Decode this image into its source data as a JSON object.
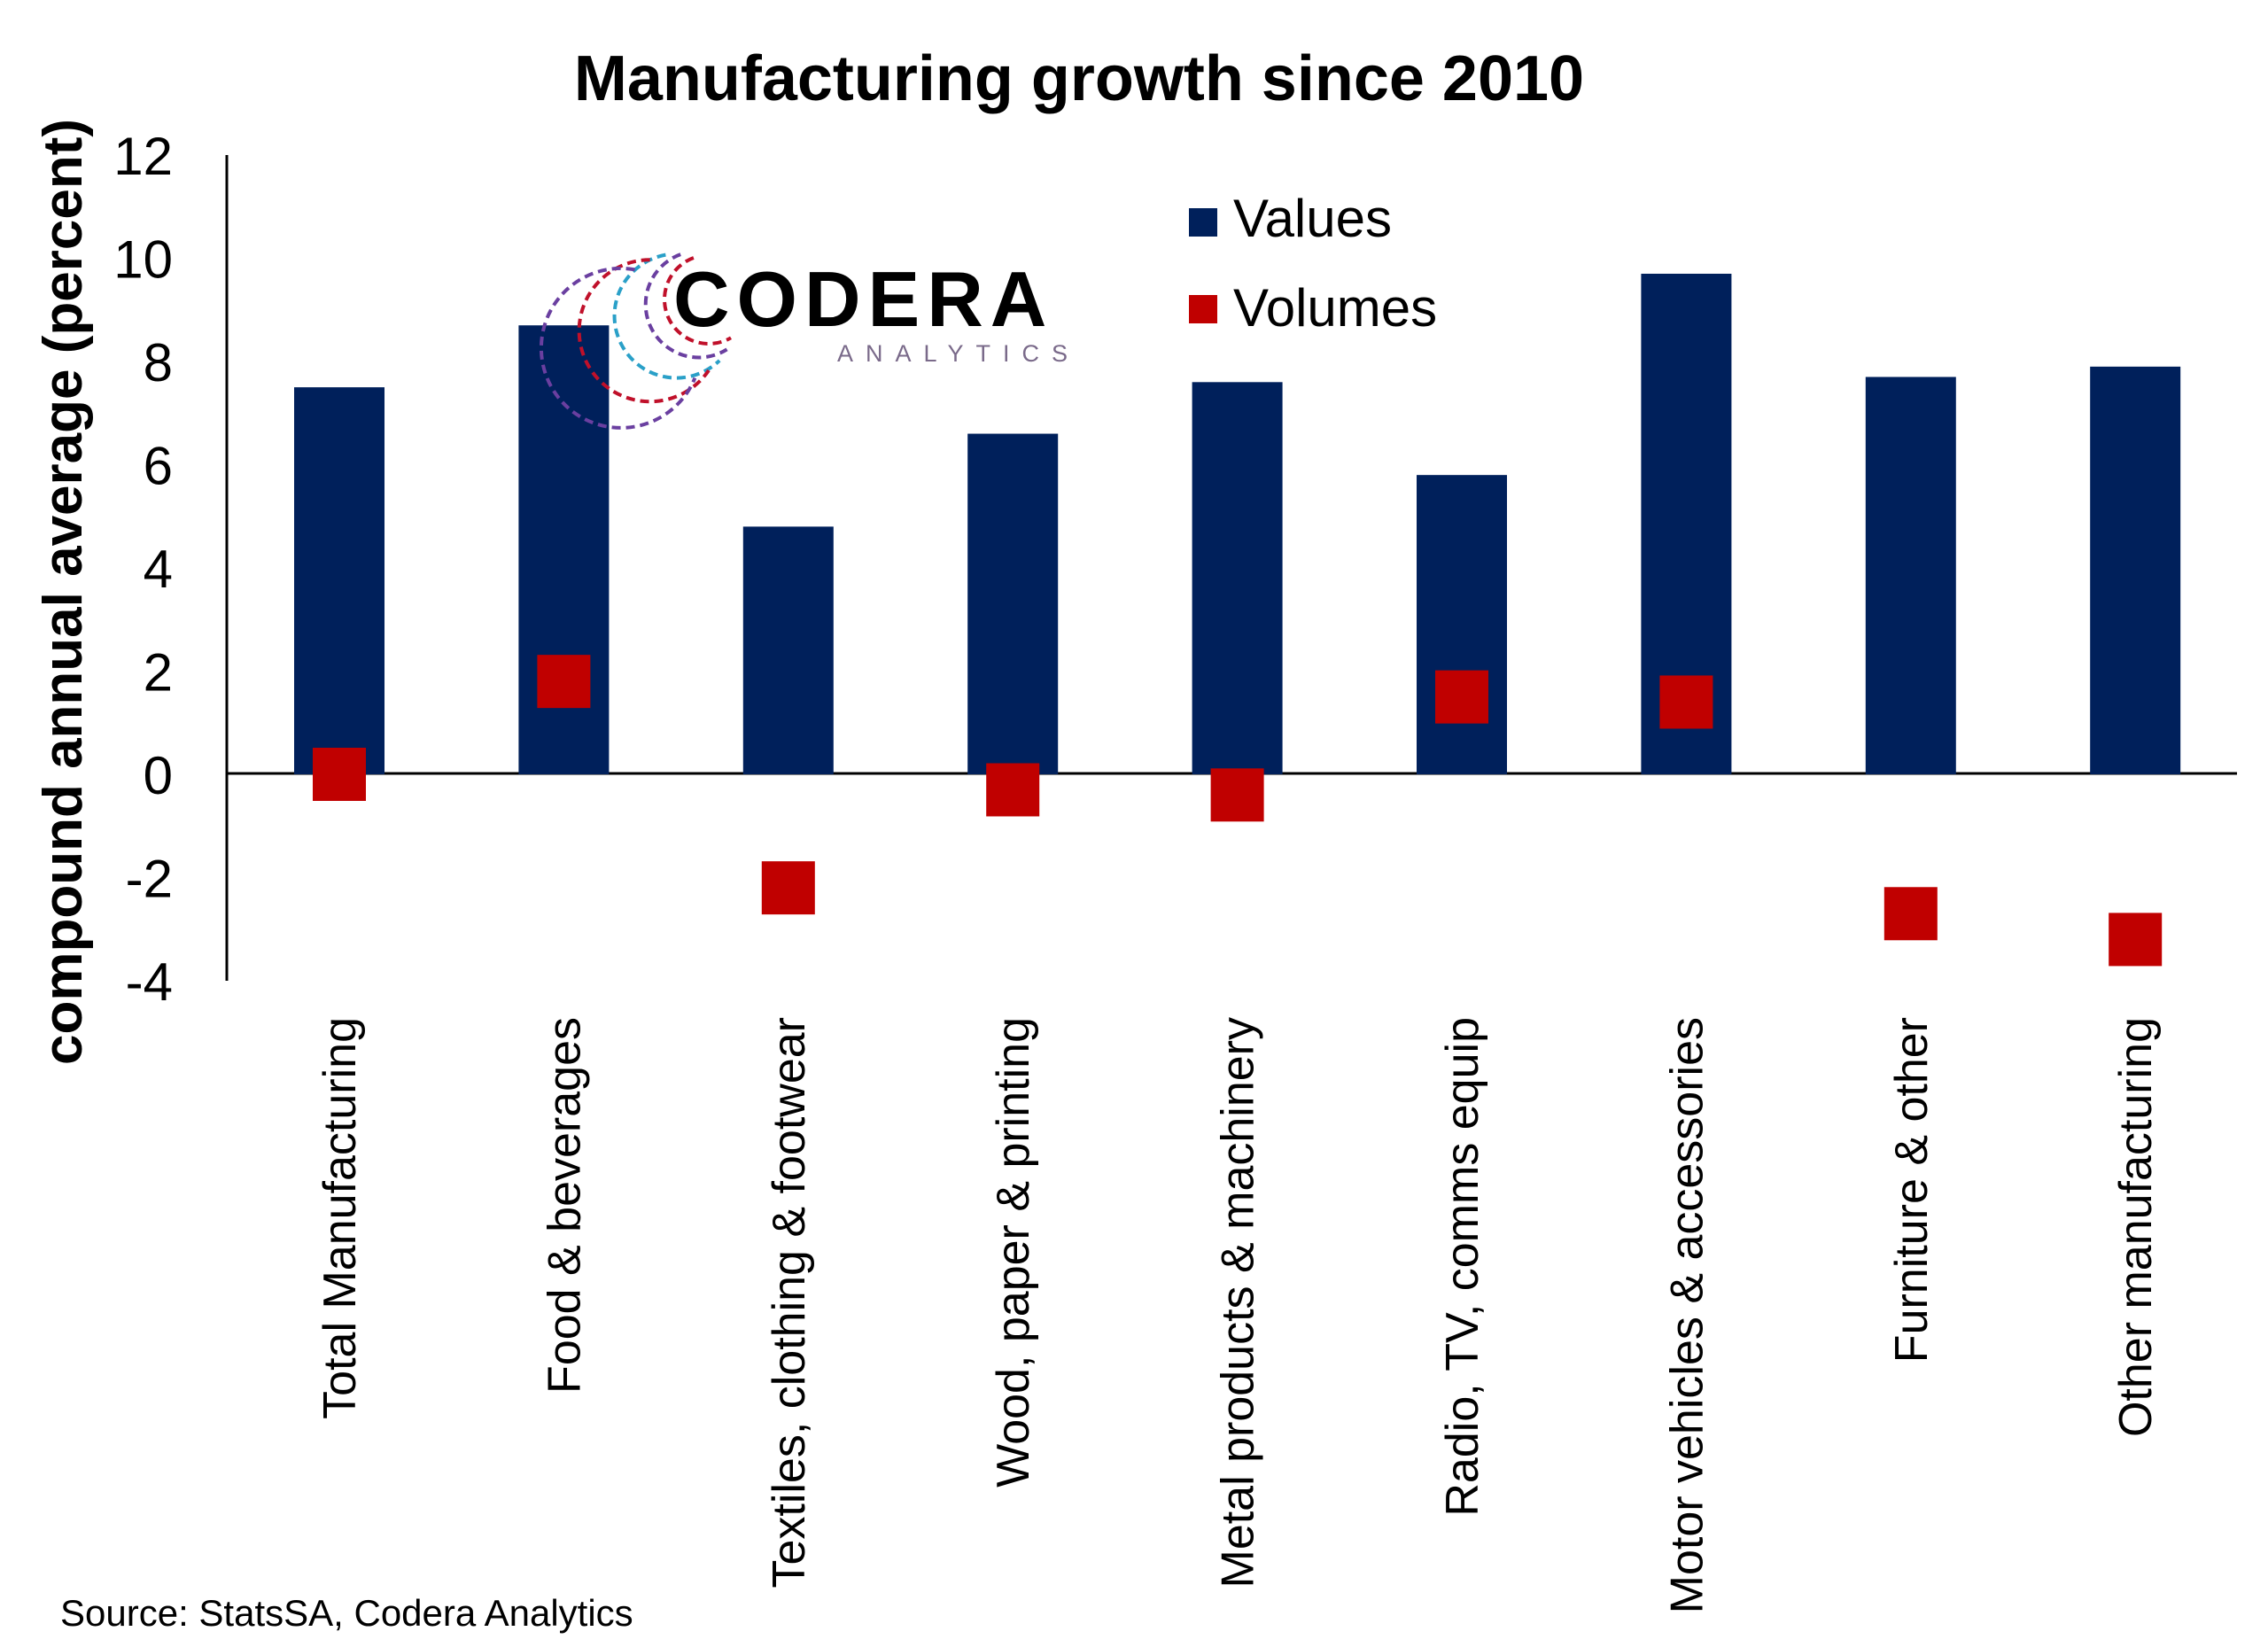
{
  "chart_data": {
    "type": "bar",
    "title": "Manufacturing growth since 2010",
    "ylabel": "compound annual average (percent)",
    "xlabel": "",
    "ylim": [
      -4,
      12
    ],
    "yticks": [
      -4,
      -2,
      0,
      2,
      4,
      6,
      8,
      10,
      12
    ],
    "grid": false,
    "legend_position": "top-right",
    "categories": [
      "Total Manufacturing",
      "Food & beverages",
      "Textiles, clothing & footwear",
      "Wood, paper & printing",
      "Metal products & machinery",
      "Radio, TV, comms equip",
      "Motor vehicles & accessories",
      "Furniture & other",
      "Other manufacturing"
    ],
    "series": [
      {
        "name": "Values",
        "type": "bar",
        "color": "#00205b",
        "values": [
          7.5,
          8.7,
          4.8,
          6.6,
          7.6,
          5.8,
          9.7,
          7.7,
          7.9
        ]
      },
      {
        "name": "Volumes",
        "type": "scatter",
        "marker": "square",
        "color": "#c00000",
        "values": [
          0.0,
          1.8,
          -2.2,
          -0.3,
          -0.4,
          1.5,
          1.4,
          -2.7,
          -3.2
        ]
      }
    ],
    "source": "Source: StatsSA, Codera Analytics"
  },
  "logo": {
    "name": "CODERA",
    "tagline": "ANALYTICS",
    "text_color": "#000000",
    "tagline_color": "#7a6a8a",
    "ring_colors": [
      "#c0102a",
      "#6a3fa0",
      "#2aa0c8"
    ]
  }
}
